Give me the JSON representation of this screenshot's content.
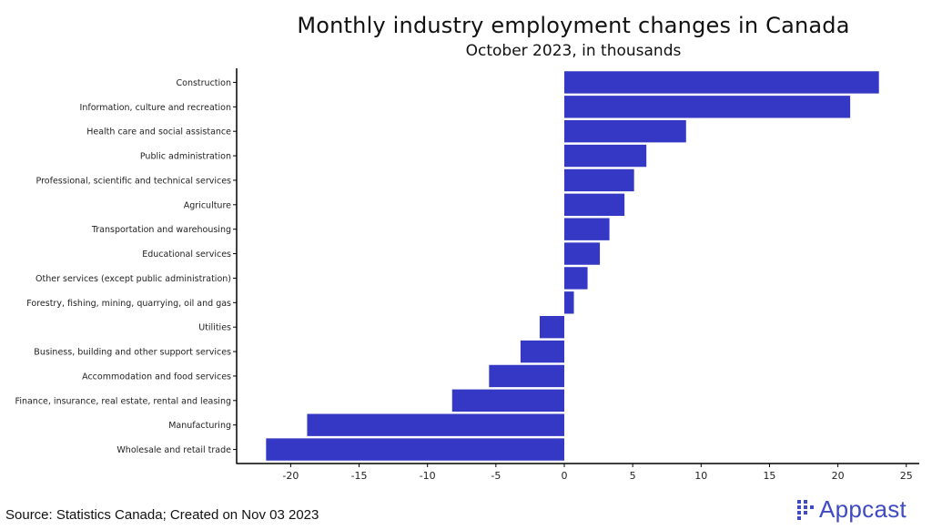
{
  "chart_data": {
    "type": "bar",
    "orientation": "horizontal",
    "title": "Monthly industry employment changes in Canada",
    "subtitle": "October 2023, in thousands",
    "categories": [
      "Construction",
      "Information, culture and recreation",
      "Health care and social assistance",
      "Public administration",
      "Professional, scientific and technical services",
      "Agriculture",
      "Transportation and warehousing",
      "Educational services",
      "Other services (except public administration)",
      "Forestry, fishing, mining, quarrying, oil and gas",
      "Utilities",
      "Business, building and other support services",
      "Accommodation and food services",
      "Finance, insurance, real estate, rental and leasing",
      "Manufacturing",
      "Wholesale and retail trade"
    ],
    "values": [
      23.0,
      20.9,
      8.9,
      6.0,
      5.1,
      4.4,
      3.3,
      2.6,
      1.7,
      0.7,
      -1.8,
      -3.2,
      -5.5,
      -8.2,
      -18.8,
      -21.8
    ],
    "xlim": [
      -24,
      25
    ],
    "xticks": [
      -20,
      -15,
      -10,
      -5,
      0,
      5,
      10,
      15,
      20,
      25
    ],
    "xtick_labels": [
      "-20",
      "-15",
      "-10",
      "-5",
      "0",
      "5",
      "10",
      "15",
      "20",
      "25"
    ],
    "grid": false,
    "bar_color": "#3438c4"
  },
  "footer": {
    "source": "Source: Statistics Canada; Created on Nov 03 2023",
    "brand": "Appcast",
    "brand_color": "#3e4bc4"
  }
}
